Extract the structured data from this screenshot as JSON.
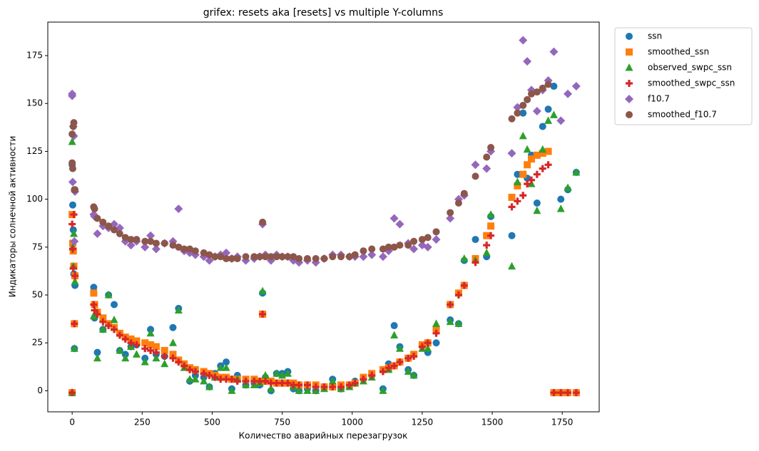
{
  "chart_data": {
    "type": "scatter",
    "title": "grifex: resets aka [resets] vs multiple Y-columns",
    "x_label": "Количество аварийных перезагрузок",
    "y_label": "Индикаторы солнечной активности",
    "xlim": [
      -87,
      1882
    ],
    "ylim": [
      -11,
      192.5
    ],
    "xticks": [
      0,
      250,
      500,
      750,
      1000,
      1250,
      1500,
      1750
    ],
    "yticks": [
      0,
      25,
      50,
      75,
      100,
      125,
      150,
      175
    ],
    "legend": "outside-upper-right",
    "x": [
      0,
      0,
      2,
      4,
      6,
      8,
      10,
      77,
      80,
      90,
      110,
      130,
      150,
      170,
      190,
      210,
      230,
      260,
      280,
      300,
      330,
      360,
      380,
      400,
      420,
      440,
      470,
      490,
      510,
      530,
      550,
      570,
      590,
      620,
      650,
      670,
      680,
      690,
      710,
      730,
      750,
      770,
      790,
      810,
      840,
      870,
      900,
      930,
      960,
      990,
      1010,
      1040,
      1070,
      1110,
      1130,
      1150,
      1170,
      1200,
      1220,
      1250,
      1270,
      1300,
      1350,
      1380,
      1400,
      1440,
      1480,
      1495,
      1570,
      1590,
      1610,
      1625,
      1640,
      1660,
      1680,
      1700,
      1720,
      1745,
      1770,
      1800
    ],
    "series": [
      {
        "name": "ssn",
        "color": "#1f77b4",
        "marker": "circle",
        "values": [
          118,
          -1,
          97,
          84,
          61,
          22,
          55,
          54,
          38,
          20,
          32,
          50,
          45,
          21,
          19,
          23,
          24,
          17,
          32,
          19,
          18,
          33,
          43,
          14,
          5,
          8,
          7,
          2,
          9,
          13,
          15,
          1,
          8,
          3,
          4,
          3,
          51,
          7,
          0,
          9,
          9,
          10,
          1,
          0,
          1,
          0,
          2,
          6,
          1,
          3,
          5,
          6,
          8,
          1,
          14,
          34,
          23,
          11,
          8,
          24,
          20,
          25,
          37,
          35,
          68,
          79,
          70,
          91,
          81,
          113,
          145,
          111,
          123,
          98,
          138,
          147,
          159,
          100,
          105,
          114
        ]
      },
      {
        "name": "smoothed_ssn",
        "color": "#ff7f0e",
        "marker": "square",
        "values": [
          92,
          -1,
          77,
          73,
          65,
          35,
          60,
          51,
          45,
          41,
          38,
          35,
          33,
          30,
          28,
          27,
          26,
          25,
          24,
          23,
          21,
          19,
          16,
          14,
          12,
          11,
          10,
          9,
          8,
          7,
          7,
          6,
          6,
          6,
          6,
          5,
          40,
          5,
          5,
          4,
          4,
          4,
          4,
          3,
          3,
          3,
          2,
          2,
          3,
          3,
          4,
          7,
          9,
          11,
          12,
          13,
          15,
          17,
          19,
          24,
          25,
          32,
          45,
          51,
          55,
          69,
          81,
          86,
          101,
          107,
          113,
          118,
          121,
          123,
          124,
          125,
          -1,
          -1,
          -1,
          -1
        ]
      },
      {
        "name": "observed_swpc_ssn",
        "color": "#2ca02c",
        "marker": "triangle",
        "values": [
          130,
          -1,
          75,
          65,
          82,
          22,
          57,
          39,
          40,
          17,
          32,
          50,
          37,
          21,
          17,
          23,
          19,
          15,
          30,
          17,
          14,
          25,
          42,
          12,
          6,
          6,
          5,
          2,
          7,
          12,
          12,
          0,
          6,
          3,
          3,
          4,
          52,
          8,
          1,
          9,
          8,
          9,
          2,
          0,
          0,
          0,
          1,
          5,
          1,
          2,
          4,
          5,
          7,
          0,
          11,
          29,
          22,
          10,
          8,
          22,
          22,
          35,
          36,
          35,
          69,
          68,
          72,
          92,
          65,
          109,
          133,
          126,
          108,
          94,
          126,
          141,
          144,
          95,
          106,
          114
        ]
      },
      {
        "name": "smoothed_swpc_ssn",
        "color": "#d62728",
        "marker": "plus",
        "values": [
          87,
          -1,
          74,
          64,
          92,
          35,
          60,
          45,
          42,
          40,
          36,
          34,
          32,
          29,
          27,
          25,
          24,
          22,
          21,
          20,
          18,
          17,
          15,
          13,
          11,
          10,
          9,
          8,
          7,
          6,
          6,
          6,
          5,
          5,
          5,
          5,
          40,
          5,
          4,
          4,
          4,
          4,
          3,
          3,
          3,
          2,
          2,
          2,
          2,
          3,
          4,
          6,
          8,
          10,
          12,
          13,
          15,
          17,
          18,
          23,
          25,
          30,
          45,
          50,
          55,
          67,
          76,
          81,
          96,
          99,
          102,
          108,
          110,
          113,
          116,
          118,
          -1,
          -1,
          -1,
          -1
        ]
      },
      {
        "name": "f10.7",
        "color": "#9467bd",
        "marker": "diamond",
        "values": [
          155,
          154,
          109,
          138,
          133,
          78,
          104,
          92,
          91,
          82,
          86,
          85,
          87,
          85,
          78,
          76,
          78,
          75,
          81,
          74,
          77,
          78,
          95,
          73,
          72,
          71,
          70,
          68,
          70,
          71,
          72,
          69,
          70,
          68,
          69,
          70,
          87,
          71,
          68,
          71,
          70,
          70,
          68,
          67,
          68,
          67,
          69,
          71,
          71,
          70,
          70,
          70,
          71,
          70,
          73,
          90,
          87,
          77,
          74,
          76,
          75,
          79,
          90,
          100,
          102,
          118,
          116,
          125,
          124,
          148,
          183,
          172,
          157,
          146,
          157,
          162,
          177,
          141,
          155,
          159
        ]
      },
      {
        "name": "smoothed_f10.7",
        "color": "#8c564b",
        "marker": "circle",
        "values": [
          134,
          119,
          116,
          138,
          140,
          105,
          105,
          96,
          95,
          90,
          88,
          86,
          84,
          82,
          80,
          79,
          79,
          78,
          78,
          77,
          77,
          76,
          75,
          74,
          74,
          73,
          72,
          71,
          70,
          70,
          69,
          69,
          69,
          70,
          70,
          70,
          88,
          70,
          70,
          70,
          70,
          70,
          70,
          69,
          69,
          69,
          69,
          70,
          70,
          70,
          71,
          73,
          74,
          74,
          75,
          75,
          76,
          76,
          78,
          79,
          80,
          83,
          93,
          98,
          103,
          112,
          122,
          127,
          142,
          145,
          149,
          152,
          155,
          156,
          158,
          160,
          null,
          null,
          null,
          null
        ]
      }
    ]
  }
}
